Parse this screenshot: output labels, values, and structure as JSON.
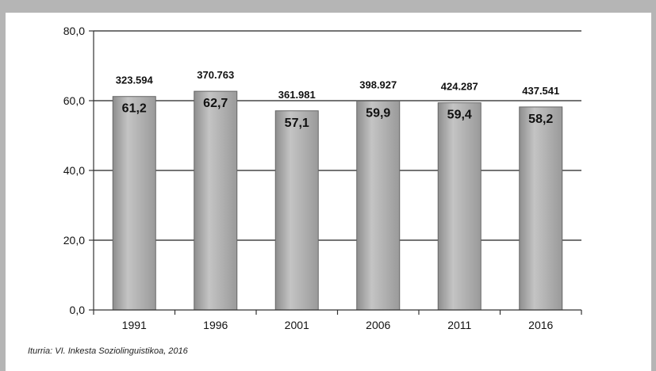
{
  "chart_data": {
    "type": "bar",
    "categories": [
      "1991",
      "1996",
      "2001",
      "2006",
      "2011",
      "2016"
    ],
    "values": [
      61.2,
      62.7,
      57.1,
      59.9,
      59.4,
      58.2
    ],
    "value_labels": [
      "61,2",
      "62,7",
      "57,1",
      "59,9",
      "59,4",
      "58,2"
    ],
    "top_labels": [
      "323.594",
      "370.763",
      "361.981",
      "398.927",
      "424.287",
      "437.541"
    ],
    "ylim": [
      0,
      80
    ],
    "yticks": [
      0,
      20,
      40,
      60,
      80
    ],
    "ytick_labels": [
      "0,0",
      "20,0",
      "40,0",
      "60,0",
      "80,0"
    ],
    "grid": true,
    "title": "",
    "xlabel": "",
    "ylabel": "",
    "colors": {
      "bar": "#a9a9a9",
      "bar_edge": "#666666",
      "grid": "#222222",
      "background": "#ffffff",
      "frame": "#b5b5b5"
    }
  },
  "source": "Iturria: VI. Inkesta Soziolinguistikoa, 2016"
}
